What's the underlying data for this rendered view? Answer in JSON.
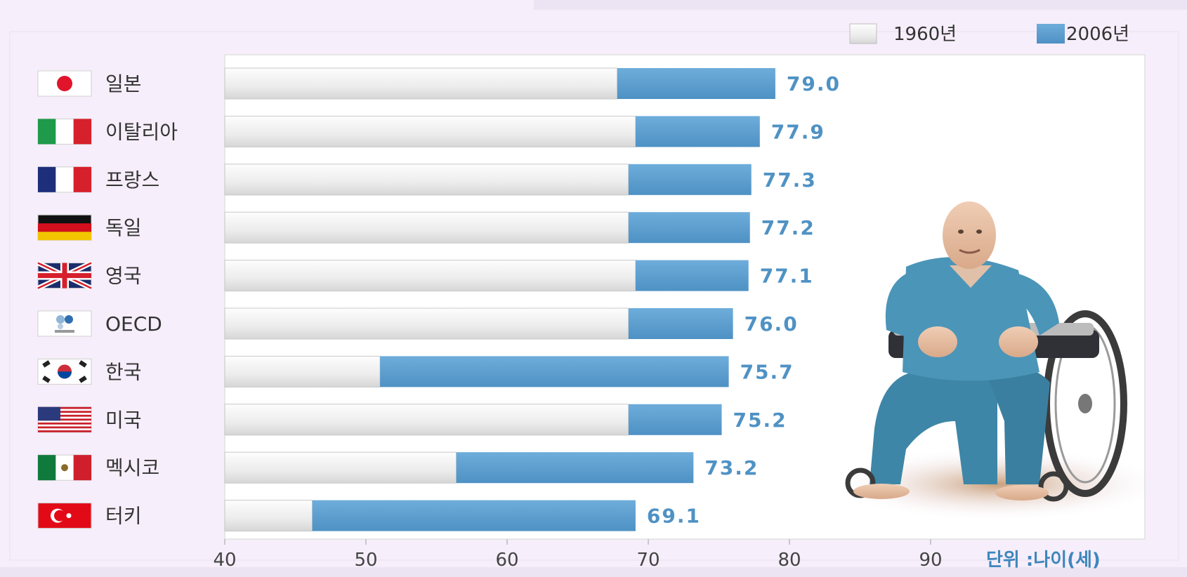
{
  "legend": [
    {
      "label": "1960년",
      "color": "#f2f2f2"
    },
    {
      "label": "2006년",
      "color": "#5b9fd0"
    }
  ],
  "unit_label": "단위 :나이(세)",
  "colors": {
    "bar_1960": "#f2f2f2",
    "bar_2006": "#5b9fd0",
    "value_text": "#4f92c4",
    "label_text": "#333333",
    "tick_text": "#444444",
    "unit_text": "#3d86bd"
  },
  "chart_data": {
    "type": "bar",
    "orientation": "horizontal",
    "categories": [
      "일본",
      "이탈리아",
      "프랑스",
      "독일",
      "영국",
      "OECD",
      "한국",
      "미국",
      "멕시코",
      "터키"
    ],
    "flags": [
      "japan-flag-icon",
      "italy-flag-icon",
      "france-flag-icon",
      "germany-flag-icon",
      "uk-flag-icon",
      "oecd-logo-icon",
      "korea-flag-icon",
      "usa-flag-icon",
      "mexico-flag-icon",
      "turkey-flag-icon"
    ],
    "series": [
      {
        "name": "1960년",
        "values": [
          67.8,
          69.1,
          68.6,
          68.6,
          69.1,
          68.6,
          51.0,
          68.6,
          56.4,
          46.2
        ]
      },
      {
        "name": "2006년",
        "values": [
          79.0,
          77.9,
          77.3,
          77.2,
          77.1,
          76.0,
          75.7,
          75.2,
          73.2,
          69.1
        ]
      }
    ],
    "value_labels": [
      "79.0",
      "77.9",
      "77.3",
      "77.2",
      "77.1",
      "76.0",
      "75.7",
      "75.2",
      "73.2",
      "69.1"
    ],
    "xlim": [
      40,
      100
    ],
    "xticks": [
      "40",
      "50",
      "60",
      "70",
      "80",
      "90"
    ],
    "legend_position": "top-right"
  }
}
